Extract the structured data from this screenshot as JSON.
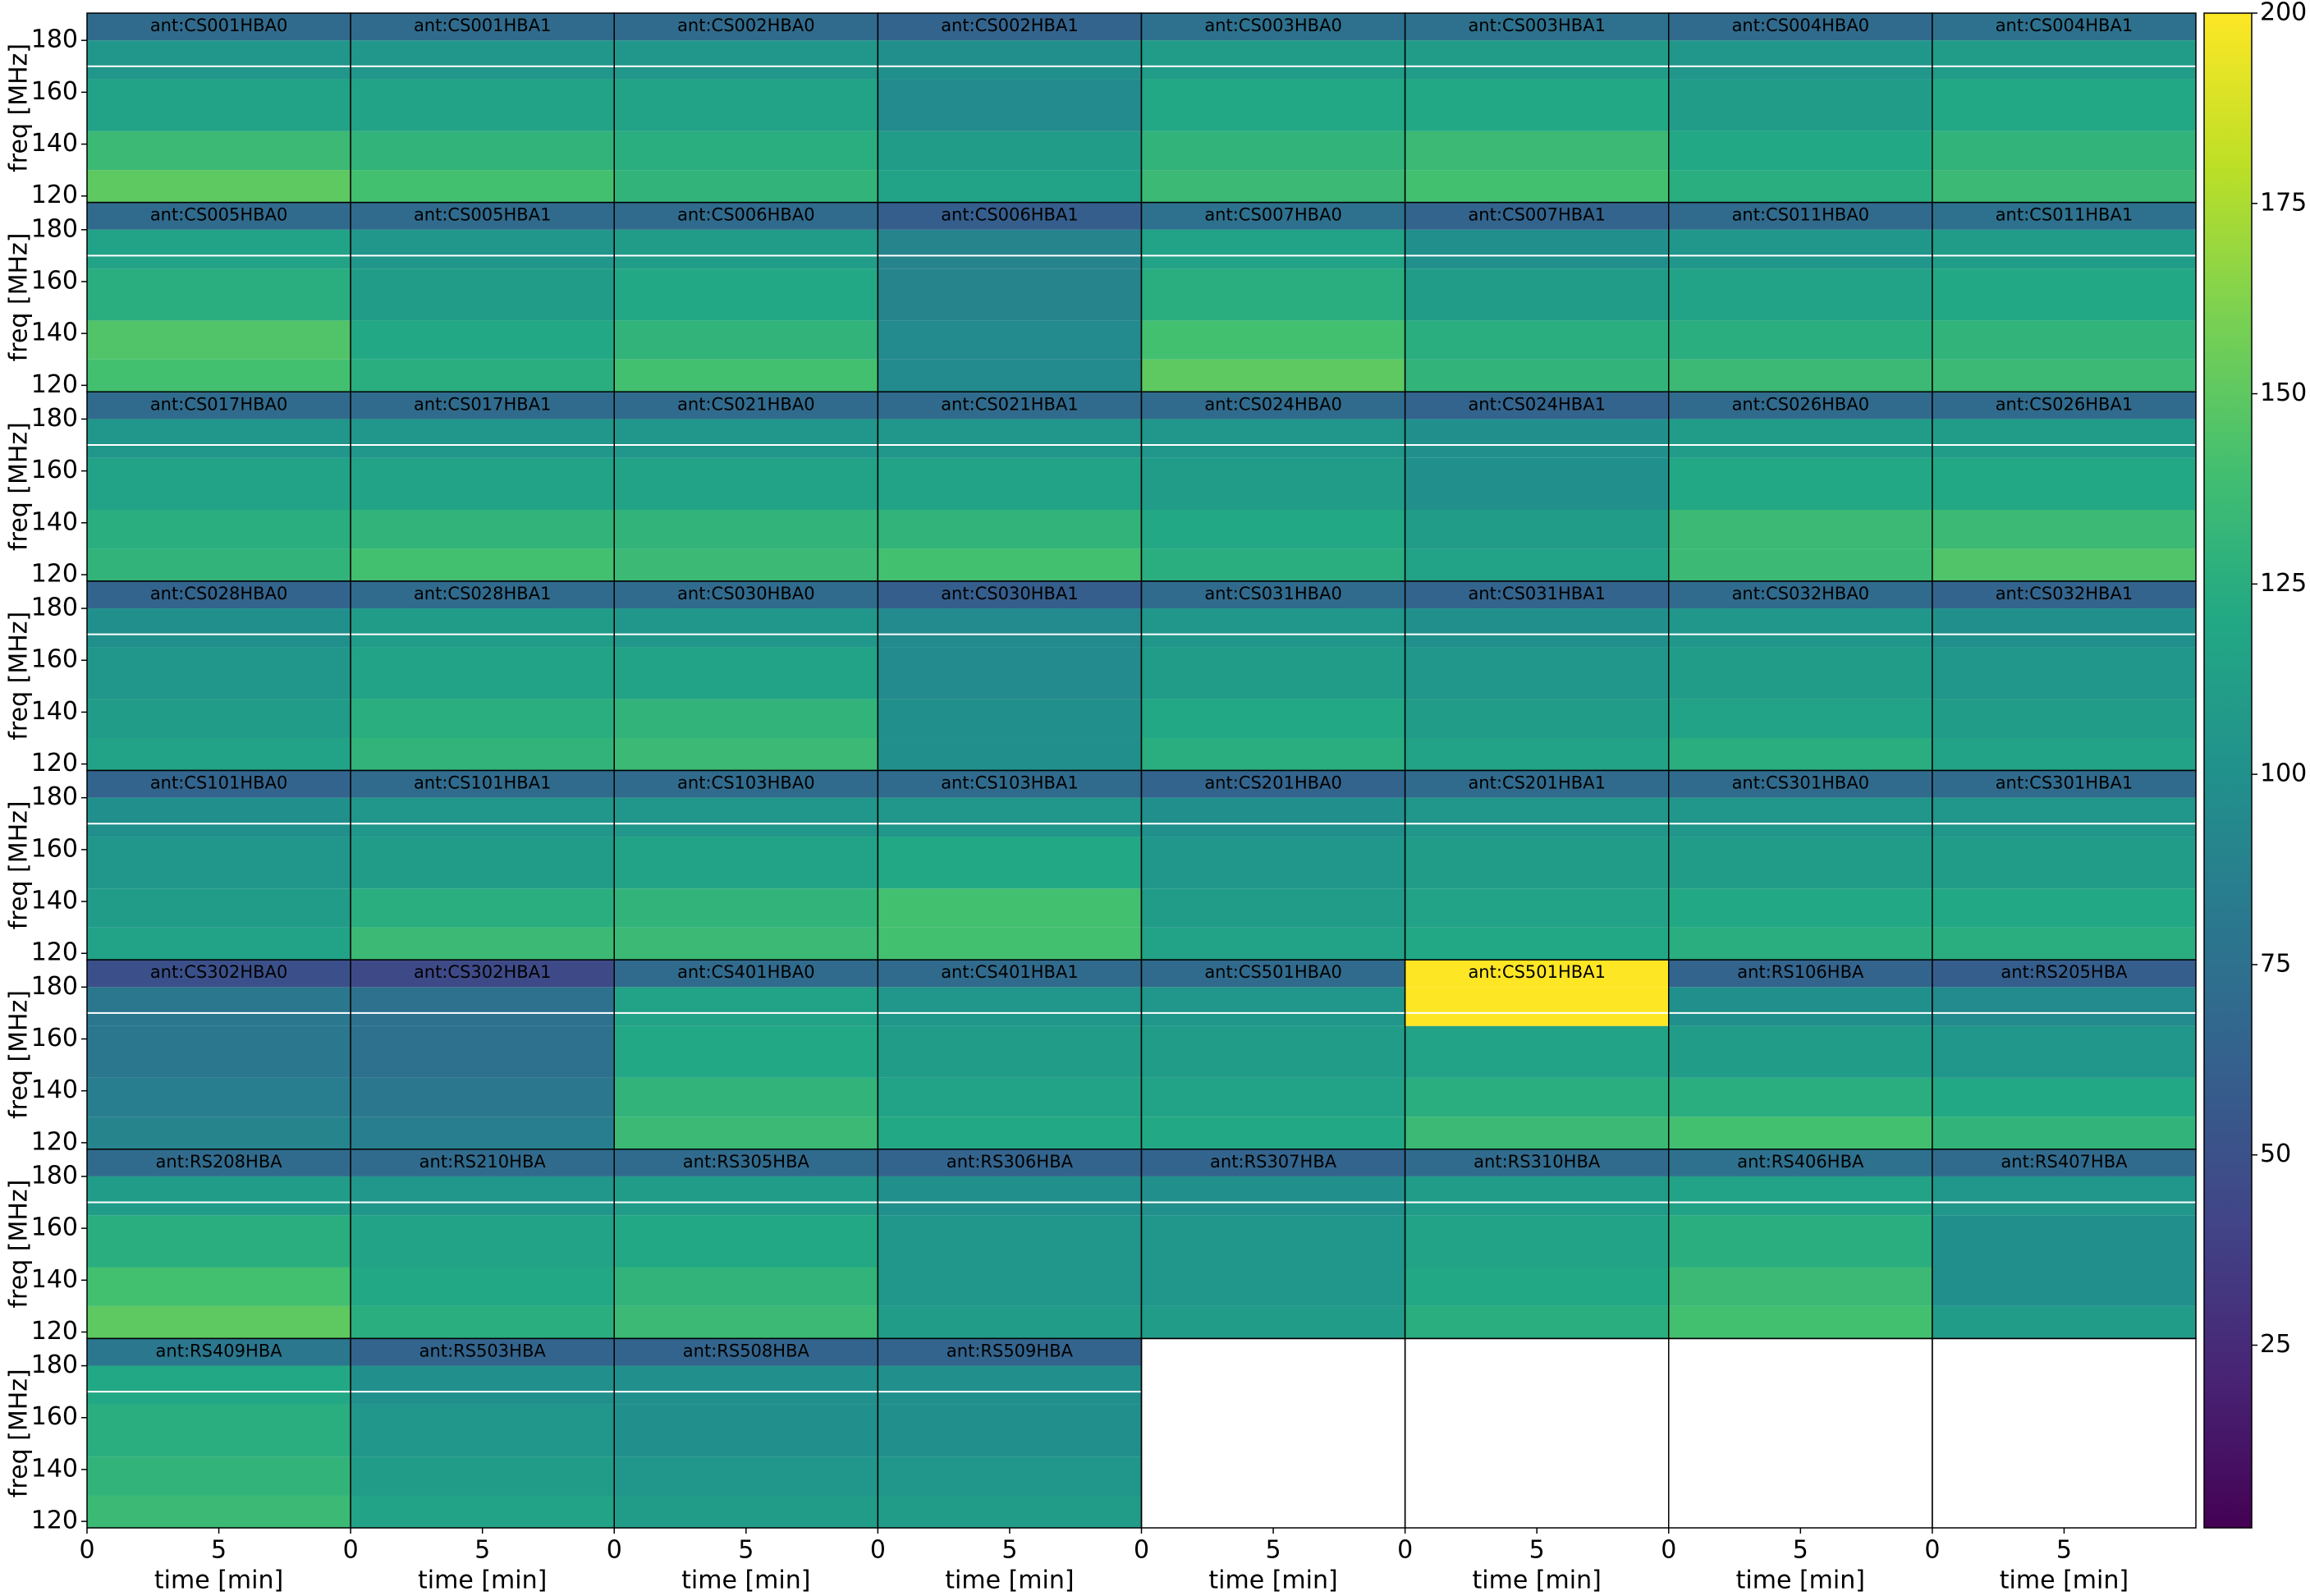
{
  "chart_data": {
    "type": "heatmap",
    "xlabel": "time [min]",
    "ylabel": "freq [MHz]",
    "xlim": [
      0,
      10
    ],
    "xticks": [
      0,
      5
    ],
    "ylim": [
      117.5,
      190.5
    ],
    "yticks": [
      120,
      140,
      160,
      180
    ],
    "freq_bands": [
      117.5,
      130,
      145,
      165,
      180,
      190.5
    ],
    "hline": 170,
    "colormap": "viridis",
    "clim": [
      1,
      200
    ],
    "cticks": [
      25,
      50,
      75,
      100,
      125,
      150,
      175,
      200
    ],
    "panels": [
      {
        "title": "ant:CS001HBA0",
        "values": [
          150,
          135,
          115,
          105,
          70
        ]
      },
      {
        "title": "ant:CS001HBA1",
        "values": [
          140,
          130,
          115,
          105,
          70
        ]
      },
      {
        "title": "ant:CS002HBA0",
        "values": [
          130,
          125,
          115,
          105,
          70
        ]
      },
      {
        "title": "ant:CS002HBA1",
        "values": [
          115,
          110,
          95,
          100,
          65
        ]
      },
      {
        "title": "ant:CS003HBA0",
        "values": [
          135,
          130,
          120,
          110,
          75
        ]
      },
      {
        "title": "ant:CS003HBA1",
        "values": [
          140,
          135,
          120,
          110,
          75
        ]
      },
      {
        "title": "ant:CS004HBA0",
        "values": [
          125,
          120,
          110,
          105,
          70
        ]
      },
      {
        "title": "ant:CS004HBA1",
        "values": [
          135,
          130,
          120,
          110,
          75
        ]
      },
      {
        "title": "ant:CS005HBA0",
        "values": [
          140,
          145,
          125,
          115,
          70
        ]
      },
      {
        "title": "ant:CS005HBA1",
        "values": [
          125,
          120,
          110,
          105,
          70
        ]
      },
      {
        "title": "ant:CS006HBA0",
        "values": [
          140,
          130,
          120,
          110,
          70
        ]
      },
      {
        "title": "ant:CS006HBA1",
        "values": [
          95,
          95,
          90,
          90,
          60
        ]
      },
      {
        "title": "ant:CS007HBA0",
        "values": [
          150,
          140,
          125,
          115,
          75
        ]
      },
      {
        "title": "ant:CS007HBA1",
        "values": [
          130,
          125,
          110,
          100,
          65
        ]
      },
      {
        "title": "ant:CS011HBA0",
        "values": [
          135,
          125,
          115,
          105,
          70
        ]
      },
      {
        "title": "ant:CS011HBA1",
        "values": [
          135,
          130,
          120,
          110,
          75
        ]
      },
      {
        "title": "ant:CS017HBA0",
        "values": [
          130,
          125,
          115,
          105,
          70
        ]
      },
      {
        "title": "ant:CS017HBA1",
        "values": [
          140,
          130,
          115,
          105,
          70
        ]
      },
      {
        "title": "ant:CS021HBA0",
        "values": [
          135,
          130,
          115,
          105,
          70
        ]
      },
      {
        "title": "ant:CS021HBA1",
        "values": [
          140,
          130,
          115,
          105,
          70
        ]
      },
      {
        "title": "ant:CS024HBA0",
        "values": [
          125,
          120,
          110,
          105,
          70
        ]
      },
      {
        "title": "ant:CS024HBA1",
        "values": [
          115,
          110,
          100,
          100,
          65
        ]
      },
      {
        "title": "ant:CS026HBA0",
        "values": [
          135,
          135,
          120,
          110,
          70
        ]
      },
      {
        "title": "ant:CS026HBA1",
        "values": [
          145,
          135,
          120,
          110,
          70
        ]
      },
      {
        "title": "ant:CS028HBA0",
        "values": [
          115,
          110,
          105,
          100,
          65
        ]
      },
      {
        "title": "ant:CS028HBA1",
        "values": [
          130,
          125,
          115,
          110,
          70
        ]
      },
      {
        "title": "ant:CS030HBA0",
        "values": [
          135,
          130,
          115,
          105,
          70
        ]
      },
      {
        "title": "ant:CS030HBA1",
        "values": [
          100,
          100,
          95,
          95,
          60
        ]
      },
      {
        "title": "ant:CS031HBA0",
        "values": [
          125,
          120,
          110,
          105,
          70
        ]
      },
      {
        "title": "ant:CS031HBA1",
        "values": [
          115,
          110,
          105,
          100,
          65
        ]
      },
      {
        "title": "ant:CS032HBA0",
        "values": [
          125,
          115,
          110,
          105,
          70
        ]
      },
      {
        "title": "ant:CS032HBA1",
        "values": [
          115,
          110,
          105,
          100,
          65
        ]
      },
      {
        "title": "ant:CS101HBA0",
        "values": [
          115,
          110,
          105,
          100,
          65
        ]
      },
      {
        "title": "ant:CS101HBA1",
        "values": [
          135,
          125,
          110,
          105,
          70
        ]
      },
      {
        "title": "ant:CS103HBA0",
        "values": [
          135,
          130,
          115,
          105,
          70
        ]
      },
      {
        "title": "ant:CS103HBA1",
        "values": [
          140,
          140,
          120,
          105,
          70
        ]
      },
      {
        "title": "ant:CS201HBA0",
        "values": [
          115,
          110,
          105,
          100,
          65
        ]
      },
      {
        "title": "ant:CS201HBA1",
        "values": [
          120,
          115,
          110,
          105,
          70
        ]
      },
      {
        "title": "ant:CS301HBA0",
        "values": [
          125,
          120,
          110,
          105,
          70
        ]
      },
      {
        "title": "ant:CS301HBA1",
        "values": [
          125,
          120,
          110,
          105,
          70
        ]
      },
      {
        "title": "ant:CS302HBA0",
        "values": [
          90,
          85,
          80,
          80,
          50
        ]
      },
      {
        "title": "ant:CS302HBA1",
        "values": [
          85,
          80,
          75,
          75,
          45
        ]
      },
      {
        "title": "ant:CS401HBA0",
        "values": [
          135,
          130,
          120,
          115,
          70
        ]
      },
      {
        "title": "ant:CS401HBA1",
        "values": [
          120,
          115,
          110,
          105,
          70
        ]
      },
      {
        "title": "ant:CS501HBA0",
        "values": [
          120,
          115,
          110,
          105,
          70
        ]
      },
      {
        "title": "ant:CS501HBA1",
        "values": [
          135,
          125,
          115,
          200,
          200
        ]
      },
      {
        "title": "ant:RS106HBA",
        "values": [
          140,
          125,
          110,
          100,
          65
        ]
      },
      {
        "title": "ant:RS205HBA",
        "values": [
          130,
          120,
          105,
          95,
          60
        ]
      },
      {
        "title": "ant:RS208HBA",
        "values": [
          150,
          140,
          125,
          110,
          70
        ]
      },
      {
        "title": "ant:RS210HBA",
        "values": [
          125,
          120,
          115,
          105,
          70
        ]
      },
      {
        "title": "ant:RS305HBA",
        "values": [
          135,
          130,
          120,
          110,
          70
        ]
      },
      {
        "title": "ant:RS306HBA",
        "values": [
          110,
          105,
          105,
          100,
          65
        ]
      },
      {
        "title": "ant:RS307HBA",
        "values": [
          110,
          105,
          105,
          100,
          65
        ]
      },
      {
        "title": "ant:RS310HBA",
        "values": [
          125,
          120,
          115,
          110,
          70
        ]
      },
      {
        "title": "ant:RS406HBA",
        "values": [
          140,
          135,
          125,
          115,
          75
        ]
      },
      {
        "title": "ant:RS407HBA",
        "values": [
          110,
          100,
          100,
          105,
          70
        ]
      },
      {
        "title": "ant:RS409HBA",
        "values": [
          135,
          130,
          125,
          120,
          80
        ]
      },
      {
        "title": "ant:RS503HBA",
        "values": [
          115,
          110,
          105,
          100,
          65
        ]
      },
      {
        "title": "ant:RS508HBA",
        "values": [
          110,
          105,
          100,
          100,
          65
        ]
      },
      {
        "title": "ant:RS509HBA",
        "values": [
          110,
          105,
          100,
          100,
          65
        ]
      }
    ]
  }
}
